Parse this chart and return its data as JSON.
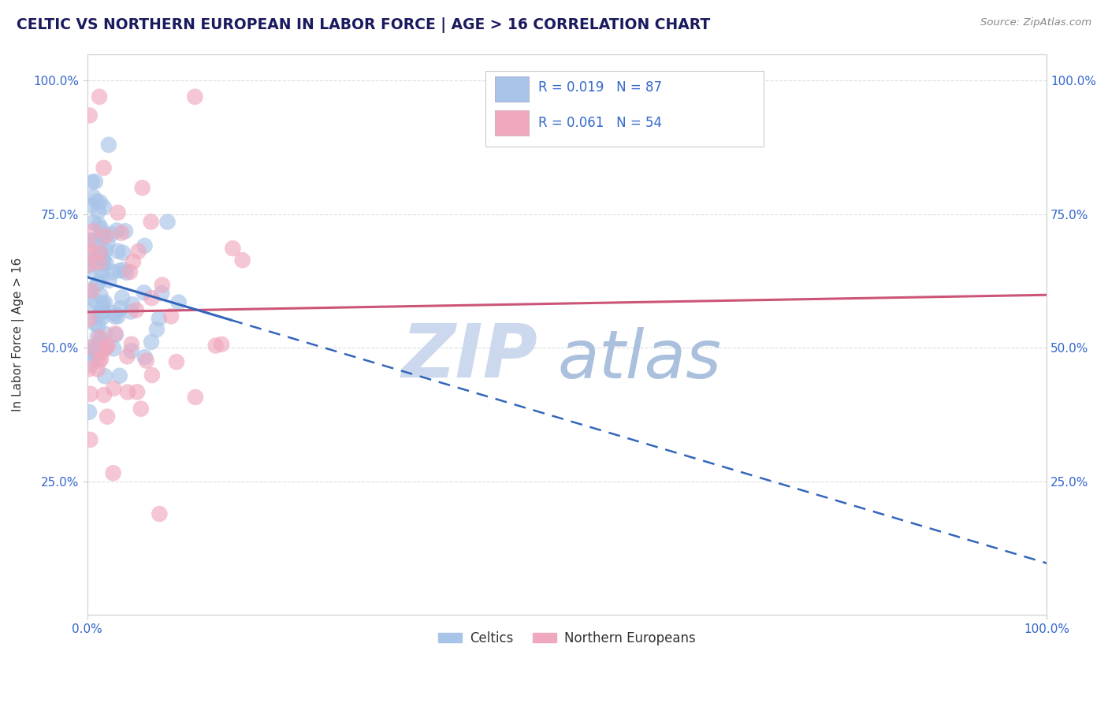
{
  "title": "CELTIC VS NORTHERN EUROPEAN IN LABOR FORCE | AGE > 16 CORRELATION CHART",
  "source_text": "Source: ZipAtlas.com",
  "ylabel": "In Labor Force | Age > 16",
  "xlim": [
    0.0,
    1.0
  ],
  "ylim": [
    0.0,
    1.05
  ],
  "celtic_R": 0.019,
  "celtic_N": 87,
  "northern_R": 0.061,
  "northern_N": 54,
  "celtic_color": "#a8c4e8",
  "northern_color": "#f0a8be",
  "celtic_line_color": "#3366bb",
  "northern_line_color": "#cc5577",
  "watermark_color_zip": "#ccd8ee",
  "watermark_color_atlas": "#aac0dc",
  "legend_celtic_label": "Celtics",
  "legend_northern_label": "Northern Europeans",
  "background_color": "#ffffff",
  "grid_color": "#dddddd",
  "title_color": "#1a1a5e",
  "stat_color": "#3366cc",
  "tick_color": "#3366cc"
}
